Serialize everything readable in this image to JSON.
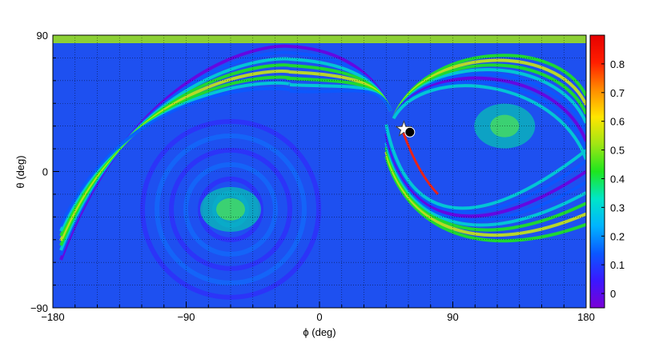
{
  "chart_data": {
    "type": "heatmap",
    "title": "",
    "xlabel": "ϕ (deg)",
    "ylabel": "θ (deg)",
    "xlim": [
      -180,
      180
    ],
    "ylim": [
      -90,
      90
    ],
    "x_ticks": [
      "−180",
      "−90",
      "0",
      "90",
      "180"
    ],
    "x_tick_values": [
      -180,
      -90,
      0,
      90,
      180
    ],
    "y_ticks": [
      "90",
      "0",
      "−90"
    ],
    "y_tick_values": [
      90,
      0,
      -90
    ],
    "grid": true,
    "colorbar": {
      "range": [
        -0.05,
        0.9
      ],
      "ticks": [
        "0",
        "0.1",
        "0.2",
        "0.3",
        "0.4",
        "0.5",
        "0.6",
        "0.7",
        "0.8"
      ],
      "tick_values": [
        0,
        0.1,
        0.2,
        0.3,
        0.4,
        0.5,
        0.6,
        0.7,
        0.8
      ],
      "palette": [
        "#7a00d6",
        "#3a18ff",
        "#0a58ff",
        "#00b4ff",
        "#00e6c8",
        "#1ee61e",
        "#a0e614",
        "#ffe600",
        "#ff8c00",
        "#ff1e00",
        "#e60000"
      ]
    },
    "hotspots": [
      {
        "phi": 125,
        "theta": 30,
        "value": 0.55
      },
      {
        "phi": -60,
        "theta": -25,
        "value": 0.5
      }
    ],
    "markers": [
      {
        "type": "star",
        "phi": 57,
        "theta": 28
      },
      {
        "type": "circle",
        "phi": 61,
        "theta": 26
      }
    ]
  }
}
